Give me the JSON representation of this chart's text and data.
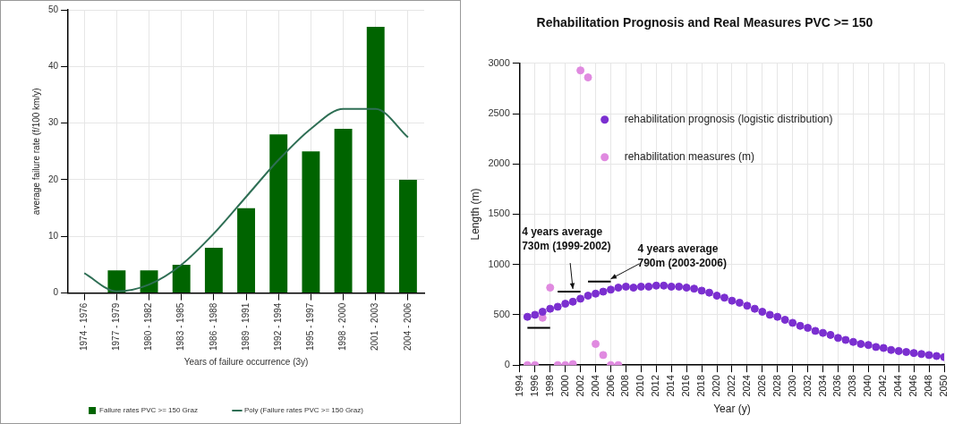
{
  "chart_data": [
    {
      "type": "bar",
      "xlabel": "Years of failure occurrence (3y)",
      "ylabel": "average failure rate (f/100 km/y)",
      "categories": [
        "1974 - 1976",
        "1977 - 1979",
        "1980 - 1982",
        "1983 - 1985",
        "1986 - 1988",
        "1989 - 1991",
        "1992 - 1994",
        "1995 - 1997",
        "1998 - 2000",
        "2001 - 2003",
        "2004 - 2006"
      ],
      "series": [
        {
          "name": "Failure rates PVC >= 150 Graz",
          "type": "bar",
          "color": "#006400",
          "values": [
            0,
            4,
            4,
            5,
            8,
            15,
            28,
            25,
            29,
            47,
            20
          ]
        },
        {
          "name": "Poly (Failure rates PVC >= 150 Graz)",
          "type": "line",
          "color": "#2f6f55",
          "values": [
            3.5,
            0.3,
            1.5,
            5,
            10.5,
            17,
            23.5,
            29,
            32.5,
            32.5,
            27.5
          ]
        }
      ],
      "ylim": [
        0,
        50
      ],
      "yticks": [
        0,
        10,
        20,
        30,
        40,
        50
      ],
      "grid": true,
      "legend": "bottom"
    },
    {
      "type": "scatter",
      "title": "Rehabilitation Prognosis and Real Measures PVC >= 150",
      "xlabel": "Year (y)",
      "ylabel": "Length (m)",
      "series": [
        {
          "name": "rehabilitation prognosis (logistic distribution)",
          "color": "#7b2fd0",
          "x": [
            1995,
            1996,
            1997,
            1998,
            1999,
            2000,
            2001,
            2002,
            2003,
            2004,
            2005,
            2006,
            2007,
            2008,
            2009,
            2010,
            2011,
            2012,
            2013,
            2014,
            2015,
            2016,
            2017,
            2018,
            2019,
            2020,
            2021,
            2022,
            2023,
            2024,
            2025,
            2026,
            2027,
            2028,
            2029,
            2030,
            2031,
            2032,
            2033,
            2034,
            2035,
            2036,
            2037,
            2038,
            2039,
            2040,
            2041,
            2042,
            2043,
            2044,
            2045,
            2046,
            2047,
            2048,
            2049,
            2050
          ],
          "values": [
            480,
            500,
            530,
            560,
            580,
            610,
            630,
            660,
            690,
            710,
            730,
            750,
            770,
            780,
            770,
            780,
            780,
            790,
            790,
            780,
            780,
            770,
            760,
            740,
            720,
            690,
            670,
            640,
            620,
            590,
            560,
            530,
            500,
            480,
            450,
            420,
            390,
            370,
            340,
            320,
            300,
            270,
            250,
            230,
            210,
            200,
            180,
            170,
            150,
            140,
            130,
            120,
            110,
            100,
            90,
            80
          ]
        },
        {
          "name": "rehabilitation measures (m)",
          "color": "#e08ae0",
          "x": [
            1995,
            1996,
            1997,
            1998,
            1999,
            2000,
            2001,
            2002,
            2003,
            2004,
            2005,
            2006,
            2007
          ],
          "values": [
            0,
            0,
            470,
            770,
            0,
            0,
            10,
            2930,
            2860,
            210,
            100,
            0,
            0
          ]
        },
        {
          "type": "line",
          "color": "#000000",
          "marker": "none",
          "x": [
            1995,
            1998
          ],
          "values": [
            370,
            370
          ]
        },
        {
          "type": "line",
          "color": "#000000",
          "marker": "none",
          "x": [
            1999,
            2002
          ],
          "values": [
            730,
            730
          ]
        },
        {
          "type": "line",
          "color": "#000000",
          "marker": "none",
          "x": [
            2003,
            2006
          ],
          "values": [
            830,
            830
          ]
        }
      ],
      "annotations": [
        {
          "text": "4 years average\n730m (1999-2002)",
          "x": 2001,
          "y": 730
        },
        {
          "text": "4 years average\n790m (2003-2006)",
          "x": 2006,
          "y": 830
        }
      ],
      "xlim": [
        1994,
        2050
      ],
      "xticks": [
        1994,
        1996,
        1998,
        2000,
        2002,
        2004,
        2006,
        2008,
        2010,
        2012,
        2014,
        2016,
        2018,
        2020,
        2022,
        2024,
        2026,
        2028,
        2030,
        2032,
        2034,
        2036,
        2038,
        2040,
        2042,
        2044,
        2046,
        2048,
        2050
      ],
      "ylim": [
        0,
        3000
      ],
      "yticks": [
        0,
        500,
        1000,
        1500,
        2000,
        2500,
        3000
      ],
      "grid": true,
      "legend": "top right",
      "marker": "circle"
    }
  ]
}
